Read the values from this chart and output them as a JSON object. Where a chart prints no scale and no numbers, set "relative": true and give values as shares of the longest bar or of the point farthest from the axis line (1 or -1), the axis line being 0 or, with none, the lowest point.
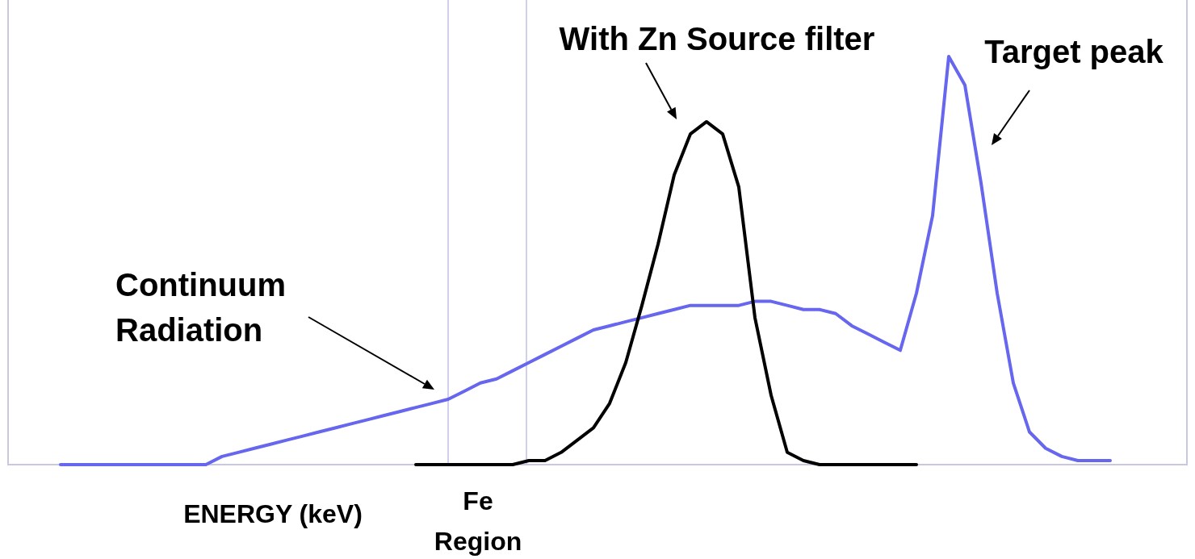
{
  "chart_data": {
    "type": "line",
    "relative": true,
    "xlabel": "ENERGY (keV)",
    "categories": [
      null,
      null,
      null,
      null,
      null,
      null,
      null,
      null,
      null,
      null,
      null,
      null,
      null,
      null,
      null,
      null,
      null,
      null,
      null,
      null,
      null,
      null,
      null,
      null,
      null,
      null,
      null,
      null,
      null,
      null,
      null,
      null,
      null,
      null,
      null,
      null,
      null,
      null,
      null,
      null,
      null,
      null,
      null,
      null,
      null,
      null,
      null,
      null,
      null,
      null,
      null,
      null,
      null,
      null,
      null,
      null,
      null,
      null,
      null,
      null,
      null,
      null,
      null,
      null,
      null,
      null
    ],
    "series": [
      {
        "color": "#6666ee",
        "values": [
          0,
          0,
          0,
          0,
          0,
          0,
          0,
          0,
          0,
          0,
          0.02,
          0.03,
          0.04,
          0.05,
          0.06,
          0.07,
          0.08,
          0.09,
          0.1,
          0.11,
          0.12,
          0.13,
          0.14,
          0.15,
          0.16,
          0.18,
          0.2,
          0.21,
          0.23,
          0.25,
          0.27,
          0.29,
          0.31,
          0.33,
          0.34,
          0.35,
          0.36,
          0.37,
          0.38,
          0.39,
          0.39,
          0.39,
          0.39,
          0.4,
          0.4,
          0.39,
          0.38,
          0.38,
          0.37,
          0.34,
          0.32,
          0.3,
          0.28,
          0.42,
          0.61,
          1,
          0.93,
          0.69,
          0.42,
          0.2,
          0.08,
          0.04,
          0.02,
          0.01,
          0.01,
          0.01
        ]
      },
      {
        "color": "#000000",
        "values": [
          null,
          null,
          null,
          null,
          null,
          null,
          null,
          null,
          null,
          null,
          null,
          null,
          null,
          null,
          null,
          null,
          null,
          null,
          null,
          null,
          null,
          null,
          0,
          0,
          0,
          0,
          0,
          0,
          0,
          0.01,
          0.01,
          0.03,
          0.06,
          0.09,
          0.15,
          0.25,
          0.39,
          0.54,
          0.71,
          0.81,
          0.84,
          0.81,
          0.68,
          0.36,
          0.17,
          0.03,
          0.01,
          0,
          0,
          0,
          0,
          0,
          0,
          0,
          null,
          null,
          null,
          null,
          null,
          null,
          null,
          null,
          null,
          null,
          null,
          null
        ]
      }
    ],
    "annotations": [
      "With Zn Source filter",
      "Target peak",
      "Continuum Radiation",
      "Fe Region"
    ]
  }
}
